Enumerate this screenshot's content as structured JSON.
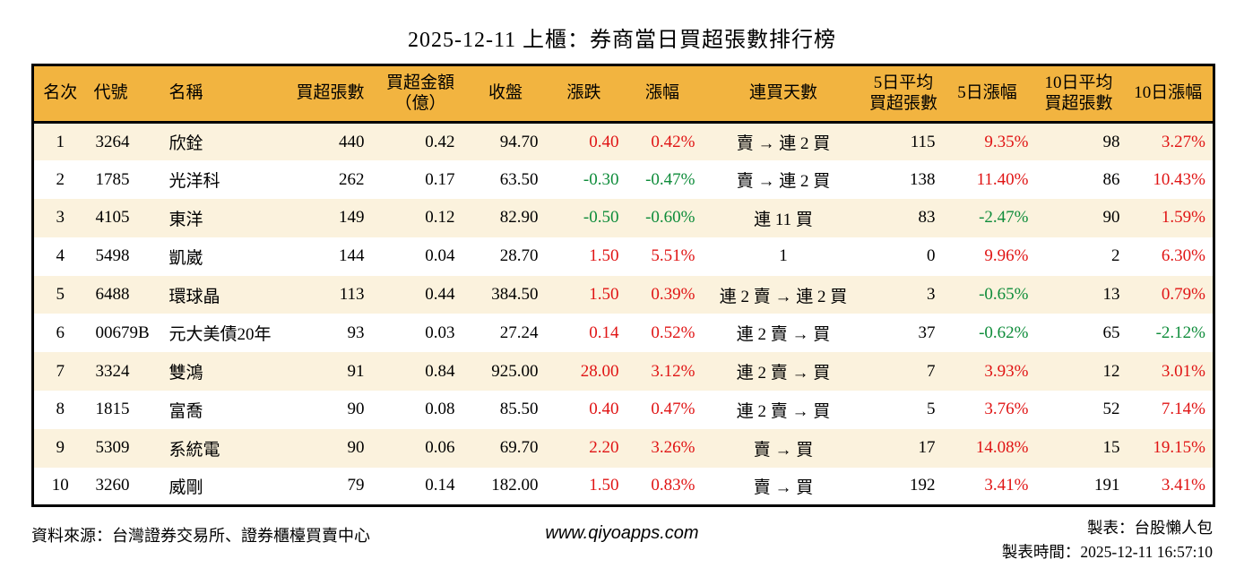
{
  "title": "2025-12-11 上櫃：券商當日買超張數排行榜",
  "colors": {
    "up_red": "#e01414",
    "down_green": "#0e8c3a",
    "header_bg": "#f2b440",
    "stripe_bg": "#fbf2dd",
    "border": "#000000"
  },
  "table": {
    "headers": [
      "名次",
      "代號",
      "名稱",
      "買超張數",
      "買超金額\n（億）",
      "收盤",
      "漲跌",
      "漲幅",
      "連買天數",
      "5日平均\n買超張數",
      "5日漲幅",
      "10日平均\n買超張數",
      "10日漲幅"
    ]
  },
  "chart_data": {
    "type": "table",
    "title": "2025-12-11 上櫃：券商當日買超張數排行榜",
    "columns": [
      "名次",
      "代號",
      "名稱",
      "買超張數",
      "買超金額（億）",
      "收盤",
      "漲跌",
      "漲幅",
      "連買天數",
      "5日平均買超張數",
      "5日漲幅",
      "10日平均買超張數",
      "10日漲幅"
    ],
    "rows": [
      {
        "rank": "1",
        "code": "3264",
        "name": "欣銓",
        "vol": "440",
        "amt": "0.42",
        "close": "94.70",
        "chg": "0.40",
        "chg_dir": "up",
        "pct": "0.42%",
        "pct_dir": "up",
        "streak": "賣 → 連 2 買",
        "avg5": "115",
        "pct5": "9.35%",
        "pct5_dir": "up",
        "avg10": "98",
        "pct10": "3.27%",
        "pct10_dir": "up"
      },
      {
        "rank": "2",
        "code": "1785",
        "name": "光洋科",
        "vol": "262",
        "amt": "0.17",
        "close": "63.50",
        "chg": "-0.30",
        "chg_dir": "down",
        "pct": "-0.47%",
        "pct_dir": "down",
        "streak": "賣 → 連 2 買",
        "avg5": "138",
        "pct5": "11.40%",
        "pct5_dir": "up",
        "avg10": "86",
        "pct10": "10.43%",
        "pct10_dir": "up"
      },
      {
        "rank": "3",
        "code": "4105",
        "name": "東洋",
        "vol": "149",
        "amt": "0.12",
        "close": "82.90",
        "chg": "-0.50",
        "chg_dir": "down",
        "pct": "-0.60%",
        "pct_dir": "down",
        "streak": "連 11 買",
        "avg5": "83",
        "pct5": "-2.47%",
        "pct5_dir": "down",
        "avg10": "90",
        "pct10": "1.59%",
        "pct10_dir": "up"
      },
      {
        "rank": "4",
        "code": "5498",
        "name": "凱崴",
        "vol": "144",
        "amt": "0.04",
        "close": "28.70",
        "chg": "1.50",
        "chg_dir": "up",
        "pct": "5.51%",
        "pct_dir": "up",
        "streak": "1",
        "avg5": "0",
        "pct5": "9.96%",
        "pct5_dir": "up",
        "avg10": "2",
        "pct10": "6.30%",
        "pct10_dir": "up"
      },
      {
        "rank": "5",
        "code": "6488",
        "name": "環球晶",
        "vol": "113",
        "amt": "0.44",
        "close": "384.50",
        "chg": "1.50",
        "chg_dir": "up",
        "pct": "0.39%",
        "pct_dir": "up",
        "streak": "連 2 賣 → 連 2 買",
        "avg5": "3",
        "pct5": "-0.65%",
        "pct5_dir": "down",
        "avg10": "13",
        "pct10": "0.79%",
        "pct10_dir": "up"
      },
      {
        "rank": "6",
        "code": "00679B",
        "name": "元大美債20年",
        "vol": "93",
        "amt": "0.03",
        "close": "27.24",
        "chg": "0.14",
        "chg_dir": "up",
        "pct": "0.52%",
        "pct_dir": "up",
        "streak": "連 2 賣 → 買",
        "avg5": "37",
        "pct5": "-0.62%",
        "pct5_dir": "down",
        "avg10": "65",
        "pct10": "-2.12%",
        "pct10_dir": "down"
      },
      {
        "rank": "7",
        "code": "3324",
        "name": "雙鴻",
        "vol": "91",
        "amt": "0.84",
        "close": "925.00",
        "chg": "28.00",
        "chg_dir": "up",
        "pct": "3.12%",
        "pct_dir": "up",
        "streak": "連 2 賣 → 買",
        "avg5": "7",
        "pct5": "3.93%",
        "pct5_dir": "up",
        "avg10": "12",
        "pct10": "3.01%",
        "pct10_dir": "up"
      },
      {
        "rank": "8",
        "code": "1815",
        "name": "富喬",
        "vol": "90",
        "amt": "0.08",
        "close": "85.50",
        "chg": "0.40",
        "chg_dir": "up",
        "pct": "0.47%",
        "pct_dir": "up",
        "streak": "連 2 賣 → 買",
        "avg5": "5",
        "pct5": "3.76%",
        "pct5_dir": "up",
        "avg10": "52",
        "pct10": "7.14%",
        "pct10_dir": "up"
      },
      {
        "rank": "9",
        "code": "5309",
        "name": "系統電",
        "vol": "90",
        "amt": "0.06",
        "close": "69.70",
        "chg": "2.20",
        "chg_dir": "up",
        "pct": "3.26%",
        "pct_dir": "up",
        "streak": "賣 → 買",
        "avg5": "17",
        "pct5": "14.08%",
        "pct5_dir": "up",
        "avg10": "15",
        "pct10": "19.15%",
        "pct10_dir": "up"
      },
      {
        "rank": "10",
        "code": "3260",
        "name": "威剛",
        "vol": "79",
        "amt": "0.14",
        "close": "182.00",
        "chg": "1.50",
        "chg_dir": "up",
        "pct": "0.83%",
        "pct_dir": "up",
        "streak": "賣 → 買",
        "avg5": "192",
        "pct5": "3.41%",
        "pct5_dir": "up",
        "avg10": "191",
        "pct10": "3.41%",
        "pct10_dir": "up"
      }
    ]
  },
  "footer": {
    "source": "資料來源：台灣證券交易所、證券櫃檯買賣中心",
    "website": "www.qiyoapps.com",
    "maker": "製表：台股懶人包",
    "time": "製表時間：2025-12-11 16:57:10"
  }
}
